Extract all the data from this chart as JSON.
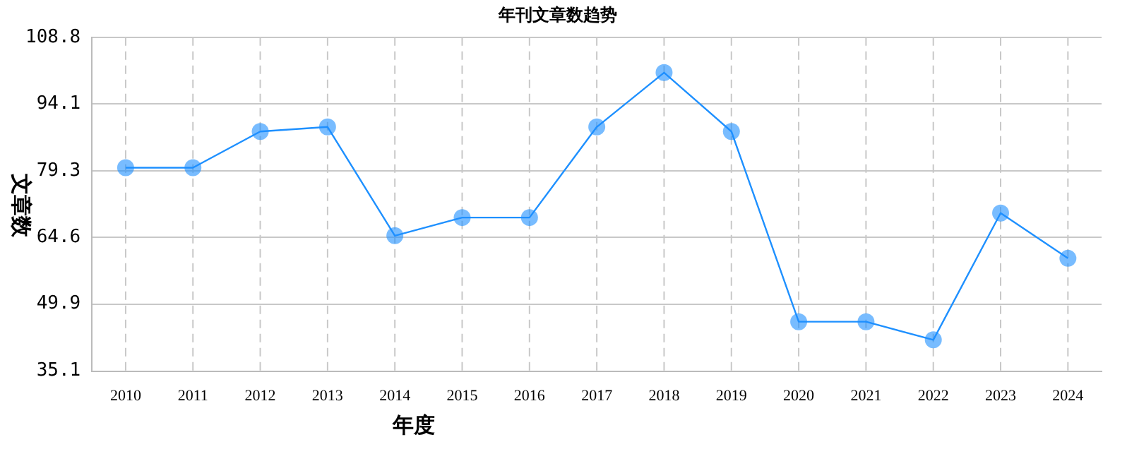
{
  "chart_data": {
    "type": "line",
    "title": "年刊文章数趋势",
    "xlabel": "年度",
    "ylabel": "文章数",
    "categories": [
      "2010",
      "2011",
      "2012",
      "2013",
      "2014",
      "2015",
      "2016",
      "2017",
      "2018",
      "2019",
      "2020",
      "2021",
      "2022",
      "2023",
      "2024"
    ],
    "series": [
      {
        "color": "#1e90ff",
        "values": [
          80,
          80,
          88,
          89,
          65,
          69,
          69,
          89,
          101,
          88,
          46,
          46,
          42,
          70,
          60
        ]
      }
    ],
    "ylim": [
      35.1,
      108.8
    ],
    "yticks": [
      35.1,
      49.9,
      64.6,
      79.3,
      94.1,
      108.8
    ],
    "grid": true,
    "marker": "circle",
    "line_style": "solid",
    "legend": false
  }
}
